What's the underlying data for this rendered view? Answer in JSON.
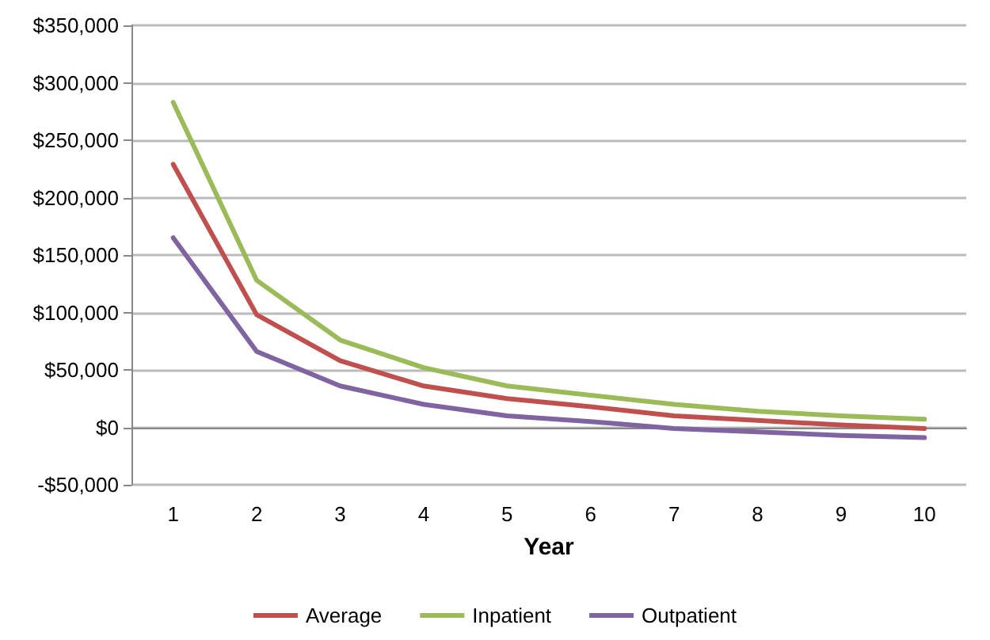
{
  "chart_data": {
    "type": "line",
    "xlabel": "Year",
    "categories": [
      "1",
      "2",
      "3",
      "4",
      "5",
      "6",
      "7",
      "8",
      "9",
      "10"
    ],
    "series": [
      {
        "name": "Average",
        "color": "#c0504d",
        "values": [
          229000,
          98000,
          58000,
          36000,
          25000,
          18000,
          10000,
          6000,
          2000,
          -1000
        ]
      },
      {
        "name": "Inpatient",
        "color": "#9bbb59",
        "values": [
          283000,
          128000,
          76000,
          52000,
          36000,
          28000,
          20000,
          14000,
          10000,
          7000
        ]
      },
      {
        "name": "Outpatient",
        "color": "#8064a2",
        "values": [
          165000,
          66000,
          36000,
          20000,
          10000,
          5000,
          -1000,
          -4000,
          -7000,
          -9000
        ]
      }
    ],
    "ylim": [
      -50000,
      350000
    ],
    "yticks": [
      {
        "value": -50000,
        "label": "-$50,000"
      },
      {
        "value": 0,
        "label": "$0"
      },
      {
        "value": 50000,
        "label": "$50,000"
      },
      {
        "value": 100000,
        "label": "$100,000"
      },
      {
        "value": 150000,
        "label": "$150,000"
      },
      {
        "value": 200000,
        "label": "$200,000"
      },
      {
        "value": 250000,
        "label": "$250,000"
      },
      {
        "value": 300000,
        "label": "$300,000"
      },
      {
        "value": 350000,
        "label": "$350,000"
      }
    ],
    "grid": "y",
    "legend": "bottom",
    "marker": "none",
    "line_style": "solid"
  }
}
